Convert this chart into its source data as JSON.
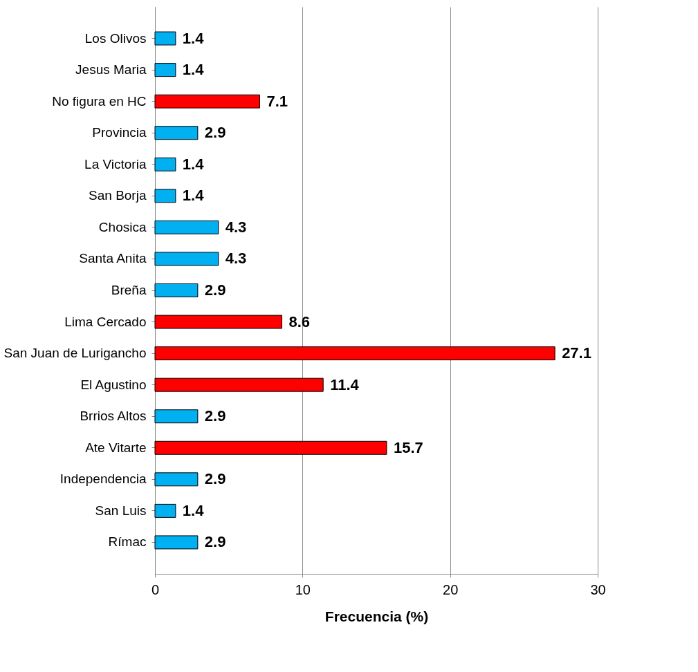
{
  "chart_data": {
    "type": "bar",
    "orientation": "horizontal",
    "xlabel": "Frecuencia (%)",
    "categories": [
      "Los Olivos",
      "Jesus Maria",
      "No figura en HC",
      "Provincia",
      "La Victoria",
      "San Borja",
      "Chosica",
      "Santa Anita",
      "Breña",
      "Lima Cercado",
      "San Juan de Lurigancho",
      "El Agustino",
      "Brrios Altos",
      "Ate Vitarte",
      "Independencia",
      "San Luis",
      "Rímac"
    ],
    "values": [
      1.4,
      1.4,
      7.1,
      2.9,
      1.4,
      1.4,
      4.3,
      4.3,
      2.9,
      8.6,
      27.1,
      11.4,
      2.9,
      15.7,
      2.9,
      1.4,
      2.9
    ],
    "colors": [
      "#00b0f0",
      "#00b0f0",
      "#ff0000",
      "#00b0f0",
      "#00b0f0",
      "#00b0f0",
      "#00b0f0",
      "#00b0f0",
      "#00b0f0",
      "#ff0000",
      "#ff0000",
      "#ff0000",
      "#00b0f0",
      "#ff0000",
      "#00b0f0",
      "#00b0f0",
      "#00b0f0"
    ],
    "xlim": [
      0,
      30
    ],
    "xticks": [
      0,
      10,
      20,
      30
    ],
    "grid": "x",
    "data_labels": true
  }
}
